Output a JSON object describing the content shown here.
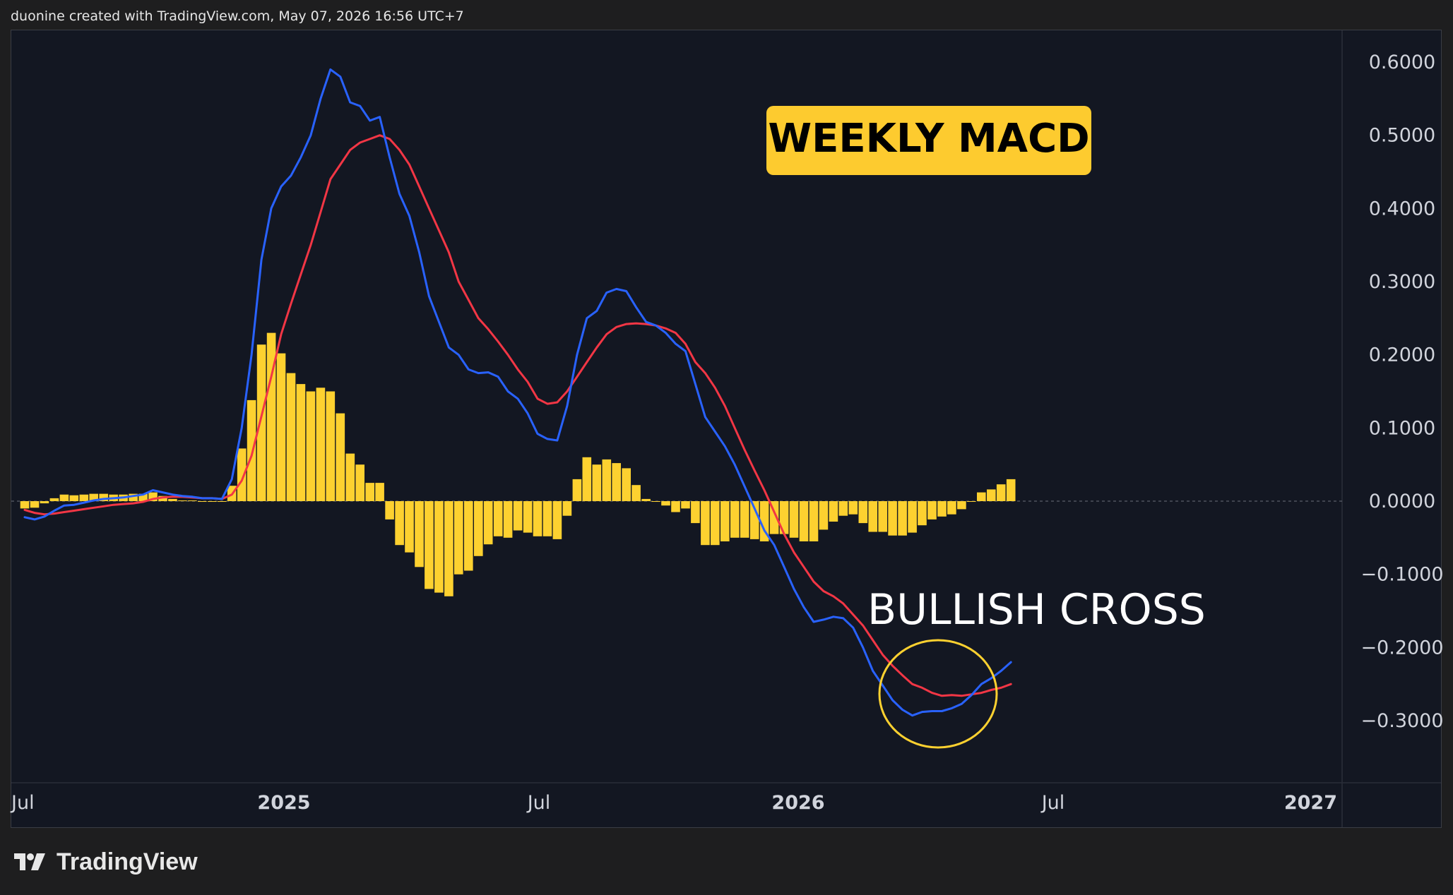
{
  "header": {
    "attribution": "duonine created with TradingView.com, May 07, 2026 16:56 UTC+7"
  },
  "footer": {
    "logo_text": "TradingView"
  },
  "annotations": {
    "title": "WEEKLY MACD",
    "callout": "BULLISH CROSS"
  },
  "colors": {
    "background": "#131722",
    "macd_line": "#2962ff",
    "signal_line": "#f23645",
    "histogram": "#fdd130",
    "circle": "#fdd130",
    "title_bg": "#fdcb2f",
    "title_text": "#000000"
  },
  "chart_data": {
    "type": "line",
    "x_axis": {
      "labels": [
        {
          "text": "Jul",
          "date": "2024-07-01",
          "bold": false
        },
        {
          "text": "2025",
          "date": "2025-01-01",
          "bold": true
        },
        {
          "text": "Jul",
          "date": "2025-07-01",
          "bold": false
        },
        {
          "text": "2026",
          "date": "2026-01-01",
          "bold": true
        },
        {
          "text": "Jul",
          "date": "2026-07-01",
          "bold": false
        },
        {
          "text": "2027",
          "date": "2027-01-01",
          "bold": true
        }
      ]
    },
    "y_axis": {
      "range": [
        -0.38,
        0.64
      ],
      "ticks": [
        "0.6000",
        "0.5000",
        "0.4000",
        "0.3000",
        "0.2000",
        "0.1000",
        "0.0000",
        "−0.1000",
        "−0.2000",
        "−0.3000"
      ],
      "tick_values": [
        0.6,
        0.5,
        0.4,
        0.3,
        0.2,
        0.1,
        0.0,
        -0.1,
        -0.2,
        -0.3
      ],
      "position": "right"
    },
    "zero_line": "dashed",
    "grid": false,
    "start_date": "2024-07-01",
    "interval_days": 7,
    "series": [
      {
        "type": "line",
        "values": [
          -0.022,
          -0.025,
          -0.021,
          -0.013,
          -0.006,
          -0.005,
          -0.002,
          0.001,
          0.003,
          0.004,
          0.005,
          0.007,
          0.009,
          0.015,
          0.012,
          0.009,
          0.007,
          0.006,
          0.004,
          0.004,
          0.003,
          0.03,
          0.1,
          0.2,
          0.33,
          0.4,
          0.43,
          0.445,
          0.47,
          0.5,
          0.55,
          0.59,
          0.58,
          0.545,
          0.54,
          0.52,
          0.525,
          0.47,
          0.42,
          0.39,
          0.34,
          0.28,
          0.245,
          0.21,
          0.2,
          0.18,
          0.175,
          0.176,
          0.17,
          0.15,
          0.14,
          0.12,
          0.092,
          0.085,
          0.083,
          0.13,
          0.2,
          0.25,
          0.26,
          0.285,
          0.29,
          0.287,
          0.265,
          0.245,
          0.24,
          0.23,
          0.215,
          0.205,
          0.16,
          0.115,
          0.095,
          0.075,
          0.05,
          0.02,
          -0.01,
          -0.04,
          -0.06,
          -0.09,
          -0.12,
          -0.145,
          -0.165,
          -0.162,
          -0.158,
          -0.16,
          -0.173,
          -0.2,
          -0.232,
          -0.252,
          -0.272,
          -0.285,
          -0.293,
          -0.288,
          -0.287,
          -0.287,
          -0.283,
          -0.277,
          -0.265,
          -0.25,
          -0.242,
          -0.232,
          -0.22
        ]
      },
      {
        "type": "line",
        "values": [
          -0.012,
          -0.016,
          -0.018,
          -0.017,
          -0.015,
          -0.013,
          -0.011,
          -0.009,
          -0.007,
          -0.005,
          -0.004,
          -0.003,
          -0.001,
          0.003,
          0.005,
          0.006,
          0.006,
          0.005,
          0.004,
          0.004,
          0.003,
          0.009,
          0.028,
          0.062,
          0.116,
          0.17,
          0.228,
          0.27,
          0.31,
          0.35,
          0.395,
          0.44,
          0.46,
          0.48,
          0.49,
          0.495,
          0.5,
          0.495,
          0.48,
          0.46,
          0.43,
          0.4,
          0.37,
          0.34,
          0.3,
          0.275,
          0.25,
          0.235,
          0.218,
          0.2,
          0.18,
          0.163,
          0.14,
          0.133,
          0.135,
          0.15,
          0.17,
          0.19,
          0.21,
          0.228,
          0.238,
          0.242,
          0.243,
          0.242,
          0.24,
          0.236,
          0.23,
          0.215,
          0.19,
          0.175,
          0.155,
          0.13,
          0.1,
          0.07,
          0.042,
          0.015,
          -0.015,
          -0.045,
          -0.07,
          -0.09,
          -0.11,
          -0.123,
          -0.13,
          -0.14,
          -0.155,
          -0.17,
          -0.19,
          -0.21,
          -0.225,
          -0.238,
          -0.25,
          -0.255,
          -0.262,
          -0.266,
          -0.265,
          -0.266,
          -0.264,
          -0.262,
          -0.258,
          -0.255,
          -0.25
        ]
      },
      {
        "type": "bar",
        "values": [
          -0.01,
          -0.009,
          -0.003,
          0.004,
          0.009,
          0.008,
          0.009,
          0.01,
          0.01,
          0.009,
          0.009,
          0.01,
          0.01,
          0.012,
          0.007,
          0.003,
          0.001,
          0.001,
          0.0,
          0.0,
          0.0,
          0.021,
          0.072,
          0.138,
          0.214,
          0.23,
          0.202,
          0.175,
          0.16,
          0.15,
          0.155,
          0.15,
          0.12,
          0.065,
          0.05,
          0.025,
          0.025,
          -0.025,
          -0.06,
          -0.07,
          -0.09,
          -0.12,
          -0.125,
          -0.13,
          -0.1,
          -0.095,
          -0.075,
          -0.059,
          -0.048,
          -0.05,
          -0.04,
          -0.043,
          -0.048,
          -0.048,
          -0.052,
          -0.02,
          0.03,
          0.06,
          0.05,
          0.057,
          0.052,
          0.045,
          0.022,
          0.003,
          0.0,
          -0.006,
          -0.015,
          -0.01,
          -0.03,
          -0.06,
          -0.06,
          -0.055,
          -0.05,
          -0.05,
          -0.052,
          -0.055,
          -0.045,
          -0.045,
          -0.05,
          -0.055,
          -0.055,
          -0.039,
          -0.028,
          -0.02,
          -0.018,
          -0.03,
          -0.042,
          -0.042,
          -0.047,
          -0.047,
          -0.043,
          -0.033,
          -0.025,
          -0.021,
          -0.018,
          -0.011,
          -0.001,
          0.012,
          0.016,
          0.023,
          0.03
        ]
      }
    ]
  }
}
